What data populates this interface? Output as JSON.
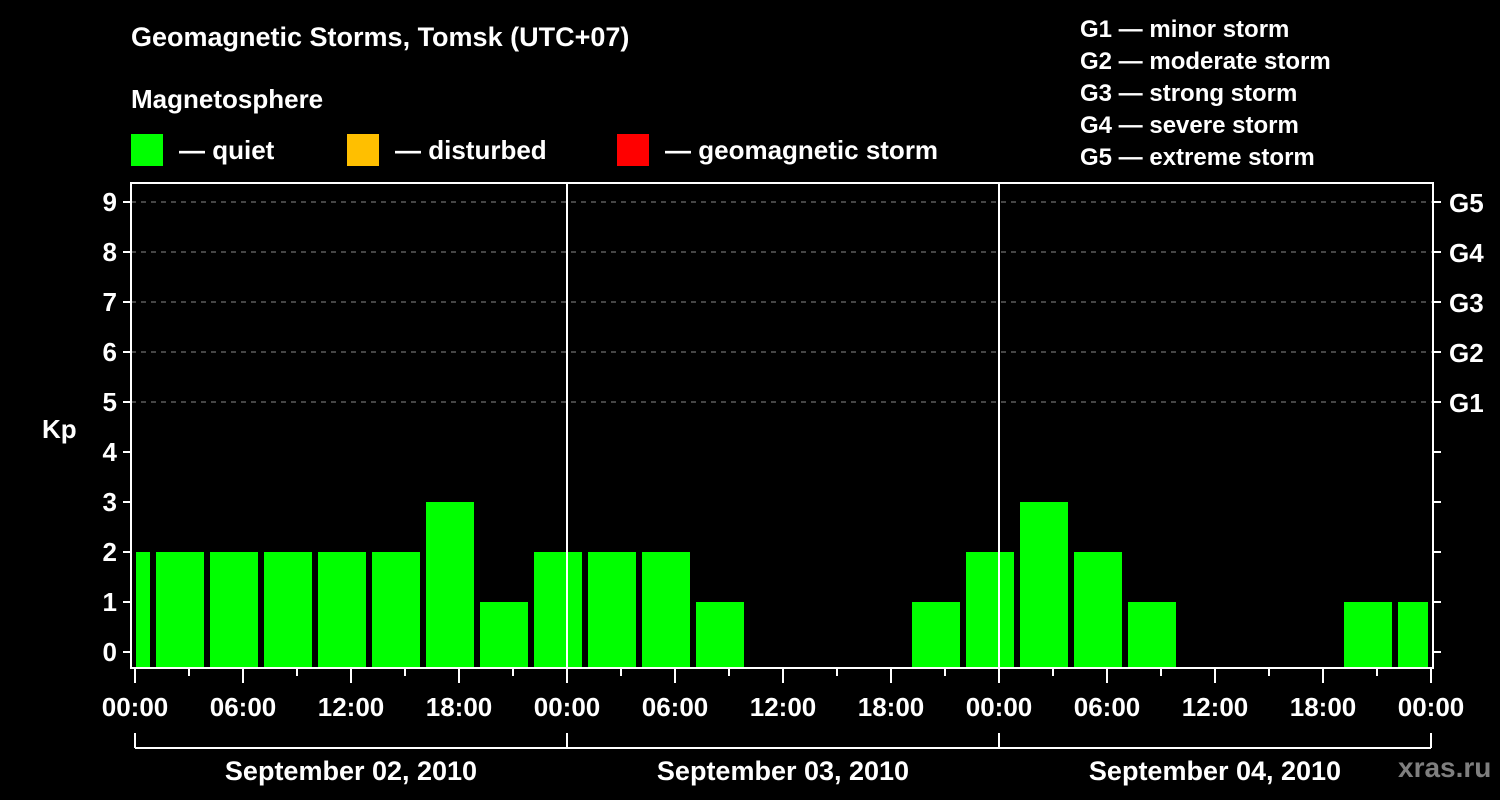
{
  "header": {
    "title": "Geomagnetic Storms, Tomsk (UTC+07)",
    "subtitle": "Magnetosphere"
  },
  "legend": [
    {
      "label": "— quiet",
      "color": "#00ff00"
    },
    {
      "label": "— disturbed",
      "color": "#ffbf00"
    },
    {
      "label": "— geomagnetic storm",
      "color": "#ff0000"
    }
  ],
  "storm_scale": [
    "G1 — minor storm",
    "G2 — moderate storm",
    "G3 — strong storm",
    "G4 — severe storm",
    "G5 — extreme storm"
  ],
  "watermark": "xras.ru",
  "chart_data": {
    "type": "bar",
    "title": "Geomagnetic Storms, Tomsk (UTC+07)",
    "subtitle": "Magnetosphere",
    "ylabel": "Kp",
    "ylim": [
      0,
      9
    ],
    "yticks": [
      0,
      1,
      2,
      3,
      4,
      5,
      6,
      7,
      8,
      9
    ],
    "right_axis_labels": [
      {
        "kp": 5,
        "label": "G1"
      },
      {
        "kp": 6,
        "label": "G2"
      },
      {
        "kp": 7,
        "label": "G3"
      },
      {
        "kp": 8,
        "label": "G4"
      },
      {
        "kp": 9,
        "label": "G5"
      }
    ],
    "grid": "dashed horizontal at Kp 5-9",
    "xticks": [
      "00:00",
      "06:00",
      "12:00",
      "18:00",
      "00:00",
      "06:00",
      "12:00",
      "18:00",
      "00:00",
      "06:00",
      "12:00",
      "18:00",
      "00:00"
    ],
    "days": [
      "September 02, 2010",
      "September 03, 2010",
      "September 04, 2010"
    ],
    "interval_hours": 3,
    "categories": [
      "Sep 01 22:00-Sep 02 01:00",
      "Sep 02 01:00",
      "Sep 02 04:00",
      "Sep 02 07:00",
      "Sep 02 10:00",
      "Sep 02 13:00",
      "Sep 02 16:00",
      "Sep 02 19:00",
      "Sep 02 22:00",
      "Sep 03 01:00",
      "Sep 03 04:00",
      "Sep 03 07:00",
      "Sep 03 10:00",
      "Sep 03 13:00",
      "Sep 03 16:00",
      "Sep 03 19:00",
      "Sep 03 22:00",
      "Sep 04 01:00",
      "Sep 04 04:00",
      "Sep 04 07:00",
      "Sep 04 10:00",
      "Sep 04 13:00",
      "Sep 04 16:00",
      "Sep 04 19:00",
      "Sep 04 22:00"
    ],
    "values": [
      2,
      2,
      2,
      2,
      2,
      2,
      3,
      1,
      2,
      2,
      2,
      1,
      0,
      0,
      0,
      1,
      2,
      3,
      2,
      1,
      0,
      0,
      0,
      1,
      1
    ],
    "bar_color": "#00ff00",
    "legend": [
      "quiet",
      "disturbed",
      "geomagnetic storm"
    ]
  }
}
